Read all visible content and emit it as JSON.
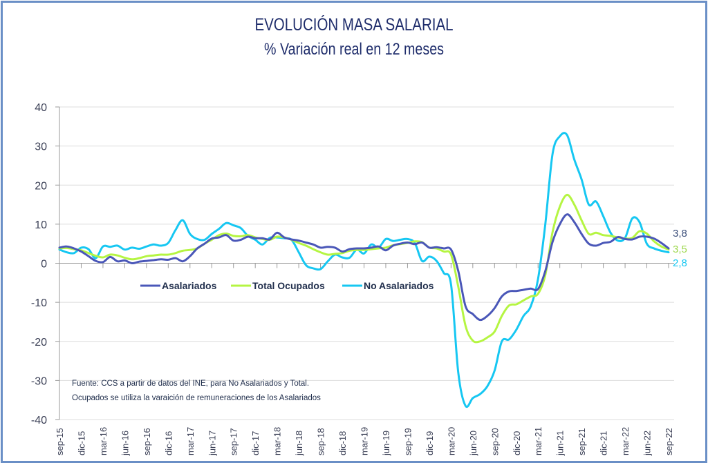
{
  "chart_data": {
    "type": "line",
    "title": "EVOLUCIÓN MASA SALARIAL",
    "subtitle": "% Variación real en 12 meses",
    "xlabel": "",
    "ylabel": "",
    "ylim": [
      -40,
      40
    ],
    "yticks": [
      40,
      30,
      20,
      10,
      0,
      -10,
      -20,
      -30,
      -40
    ],
    "grid": true,
    "legend_position": "center-left, below zero line",
    "x_tick_labels": [
      "sep-15",
      "dic-15",
      "mar-16",
      "jun-16",
      "sep-16",
      "dic-16",
      "mar-17",
      "jun-17",
      "sep-17",
      "dic-17",
      "mar-18",
      "jun-18",
      "sep-18",
      "dic-18",
      "mar-19",
      "jun-19",
      "sep-19",
      "dic-19",
      "mar-20",
      "jun-20",
      "sep-20",
      "dic-20",
      "mar-21",
      "jun-21",
      "sep-21",
      "dic-21",
      "mar-22",
      "jun-22",
      "sep-22"
    ],
    "x_frequency": "monthly, sep-15 to sep-22",
    "series": [
      {
        "name": "Asalariados",
        "color": "#4a57b8",
        "values": [
          4.0,
          4.3,
          3.8,
          3.0,
          1.8,
          0.6,
          0.3,
          1.6,
          0.5,
          0.7,
          0.0,
          0.4,
          0.6,
          0.8,
          1.0,
          0.9,
          1.3,
          0.5,
          1.8,
          3.8,
          5.0,
          6.3,
          6.6,
          7.2,
          5.8,
          6.0,
          6.8,
          6.4,
          6.4,
          6.1,
          7.8,
          6.6,
          6.1,
          5.8,
          5.3,
          4.8,
          4.0,
          4.2,
          4.0,
          3.0,
          3.6,
          3.8,
          3.8,
          4.0,
          4.3,
          3.3,
          4.5,
          5.0,
          5.3,
          4.9,
          5.3,
          4.0,
          4.1,
          3.8,
          3.5,
          -2.0,
          -11.0,
          -13.0,
          -14.5,
          -13.5,
          -11.5,
          -8.5,
          -7.2,
          -7.1,
          -6.8,
          -6.5,
          -6.6,
          -2.0,
          5.5,
          10.0,
          12.5,
          10.5,
          7.5,
          5.0,
          4.5,
          5.2,
          5.5,
          6.7,
          6.2,
          6.1,
          6.8,
          6.8,
          6.3,
          5.2,
          3.8
        ]
      },
      {
        "name": "Total Ocupados",
        "color": "#b5f542",
        "values": [
          3.8,
          3.9,
          3.6,
          3.3,
          2.6,
          1.9,
          1.5,
          2.2,
          2.0,
          1.4,
          1.0,
          1.3,
          1.8,
          2.0,
          2.2,
          2.2,
          2.6,
          3.2,
          3.4,
          3.8,
          5.0,
          6.0,
          7.2,
          7.6,
          7.0,
          6.9,
          7.2,
          6.6,
          6.2,
          6.0,
          6.8,
          6.6,
          6.0,
          5.2,
          4.5,
          3.6,
          2.8,
          2.2,
          2.4,
          2.6,
          3.2,
          3.4,
          3.4,
          3.6,
          3.8,
          4.0,
          4.6,
          4.9,
          5.2,
          5.6,
          5.4,
          4.0,
          3.8,
          3.0,
          2.2,
          -6.0,
          -16.0,
          -19.8,
          -20.0,
          -19.0,
          -17.5,
          -13.5,
          -10.8,
          -10.5,
          -9.5,
          -8.5,
          -7.8,
          -3.0,
          8.0,
          14.5,
          17.5,
          15.0,
          11.0,
          7.5,
          7.8,
          7.2,
          7.0,
          6.6,
          6.3,
          6.5,
          8.2,
          7.6,
          5.6,
          4.3,
          3.5
        ]
      },
      {
        "name": "No Asalariados",
        "color": "#16c7f2",
        "values": [
          3.5,
          2.8,
          2.6,
          4.0,
          3.6,
          1.3,
          4.3,
          4.2,
          4.5,
          3.5,
          4.0,
          3.7,
          4.3,
          4.8,
          4.5,
          5.2,
          8.5,
          11.0,
          7.5,
          6.2,
          6.0,
          7.5,
          8.8,
          10.3,
          9.7,
          9.0,
          7.0,
          6.0,
          4.8,
          6.5,
          6.6,
          6.4,
          6.0,
          2.8,
          -0.5,
          -1.3,
          -1.5,
          0.5,
          2.2,
          1.5,
          1.4,
          3.5,
          2.5,
          4.8,
          4.0,
          6.2,
          5.7,
          6.0,
          6.2,
          5.2,
          0.6,
          1.7,
          0.6,
          -2.5,
          -5.5,
          -28.0,
          -36.5,
          -34.5,
          -33.5,
          -31.5,
          -27.5,
          -20.0,
          -19.5,
          -17.0,
          -13.5,
          -11.0,
          -4.0,
          10.0,
          28.0,
          32.5,
          32.8,
          26.5,
          21.5,
          15.0,
          15.8,
          12.0,
          7.8,
          5.8,
          6.5,
          11.5,
          10.5,
          5.0,
          3.8,
          3.2,
          2.8
        ]
      }
    ],
    "end_labels": [
      {
        "series": "Asalariados",
        "text": "3,8",
        "color": "#3b4e7a"
      },
      {
        "series": "Total Ocupados",
        "text": "3,5",
        "color": "#9ed84e"
      },
      {
        "series": "No Asalariados",
        "text": "2,8",
        "color": "#16c7f2"
      }
    ],
    "source_lines": [
      "Fuente: CCS a partir de datos del INE, para No Asalariados y Total.",
      "Ocupados se utiliza la varaición de remuneraciones de los Asalariados"
    ]
  }
}
